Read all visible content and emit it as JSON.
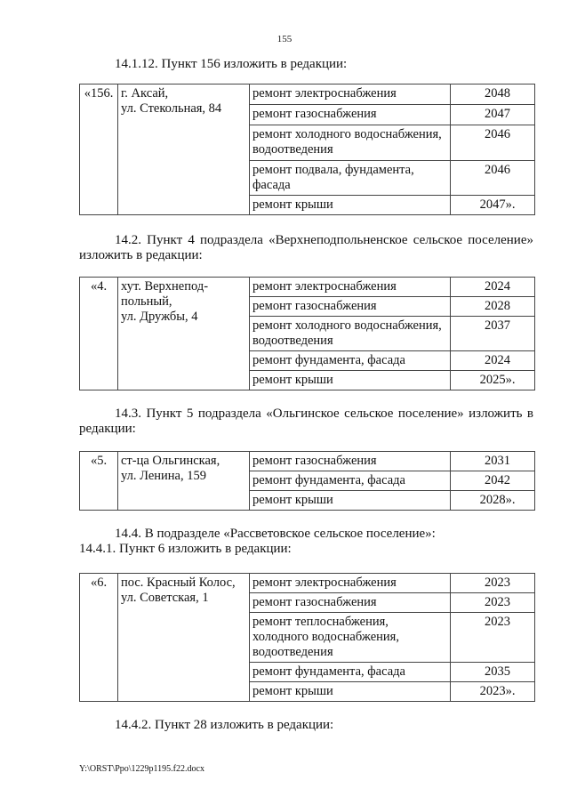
{
  "page_number": "155",
  "sections": [
    {
      "heading_lines": [
        "14.1.12. Пункт 156 изложить в редакции:"
      ],
      "row": {
        "number": "«156.",
        "address": [
          "г. Аксай,",
          "ул. Стекольная, 84"
        ],
        "works": [
          {
            "name": "ремонт электроснабжения",
            "year": "2048"
          },
          {
            "name": "ремонт газоснабжения",
            "year": "2047"
          },
          {
            "name": "ремонт холодного водоснабжения, водоотведения",
            "year": "2046"
          },
          {
            "name": "ремонт подвала, фундамента, фасада",
            "year": "2046"
          },
          {
            "name": "ремонт крыши",
            "year": "2047»."
          }
        ]
      }
    },
    {
      "heading_lines": [
        "14.2. Пункт 4 подраздела «Верхнеподпольненское сельское поселение»",
        "изложить в редакции:"
      ],
      "row": {
        "number": "«4.",
        "address": [
          "хут. Верхнепод-",
          "польный,",
          "ул. Дружбы, 4"
        ],
        "works": [
          {
            "name": "ремонт электроснабжения",
            "year": "2024"
          },
          {
            "name": "ремонт газоснабжения",
            "year": "2028"
          },
          {
            "name": "ремонт холодного водоснабжения, водоотведения",
            "year": "2037"
          },
          {
            "name": "ремонт фундамента, фасада",
            "year": "2024"
          },
          {
            "name": "ремонт крыши",
            "year": "2025»."
          }
        ]
      }
    },
    {
      "heading_lines": [
        "14.3. Пункт 5 подраздела «Ольгинское сельское поселение» изложить в",
        "редакции:"
      ],
      "row": {
        "number": "«5.",
        "address": [
          "ст-ца Ольгинская,",
          "ул. Ленина, 159"
        ],
        "works": [
          {
            "name": "ремонт газоснабжения",
            "year": "2031"
          },
          {
            "name": "ремонт фундамента, фасада",
            "year": "2042"
          },
          {
            "name": "ремонт крыши",
            "year": "2028»."
          }
        ]
      }
    },
    {
      "heading_lines": [
        "14.4. В подразделе «Рассветовское сельское поселение»:",
        "14.4.1. Пункт 6 изложить в редакции:"
      ],
      "row": {
        "number": "«6.",
        "address": [
          "пос. Красный Колос,",
          "ул. Советская, 1"
        ],
        "works": [
          {
            "name": "ремонт электроснабжения",
            "year": "2023"
          },
          {
            "name": "ремонт газоснабжения",
            "year": "2023"
          },
          {
            "name": "ремонт теплоснабжения, холодного водоснабжения, водоотведения",
            "year": "2023"
          },
          {
            "name": "ремонт фундамента, фасада",
            "year": "2035"
          },
          {
            "name": "ремонт крыши",
            "year": "2023»."
          }
        ]
      }
    }
  ],
  "closing_paragraph": "14.4.2. Пункт 28 изложить в редакции:",
  "footer_path": "Y:\\ORST\\Ppo\\1229p1195.f22.docx"
}
